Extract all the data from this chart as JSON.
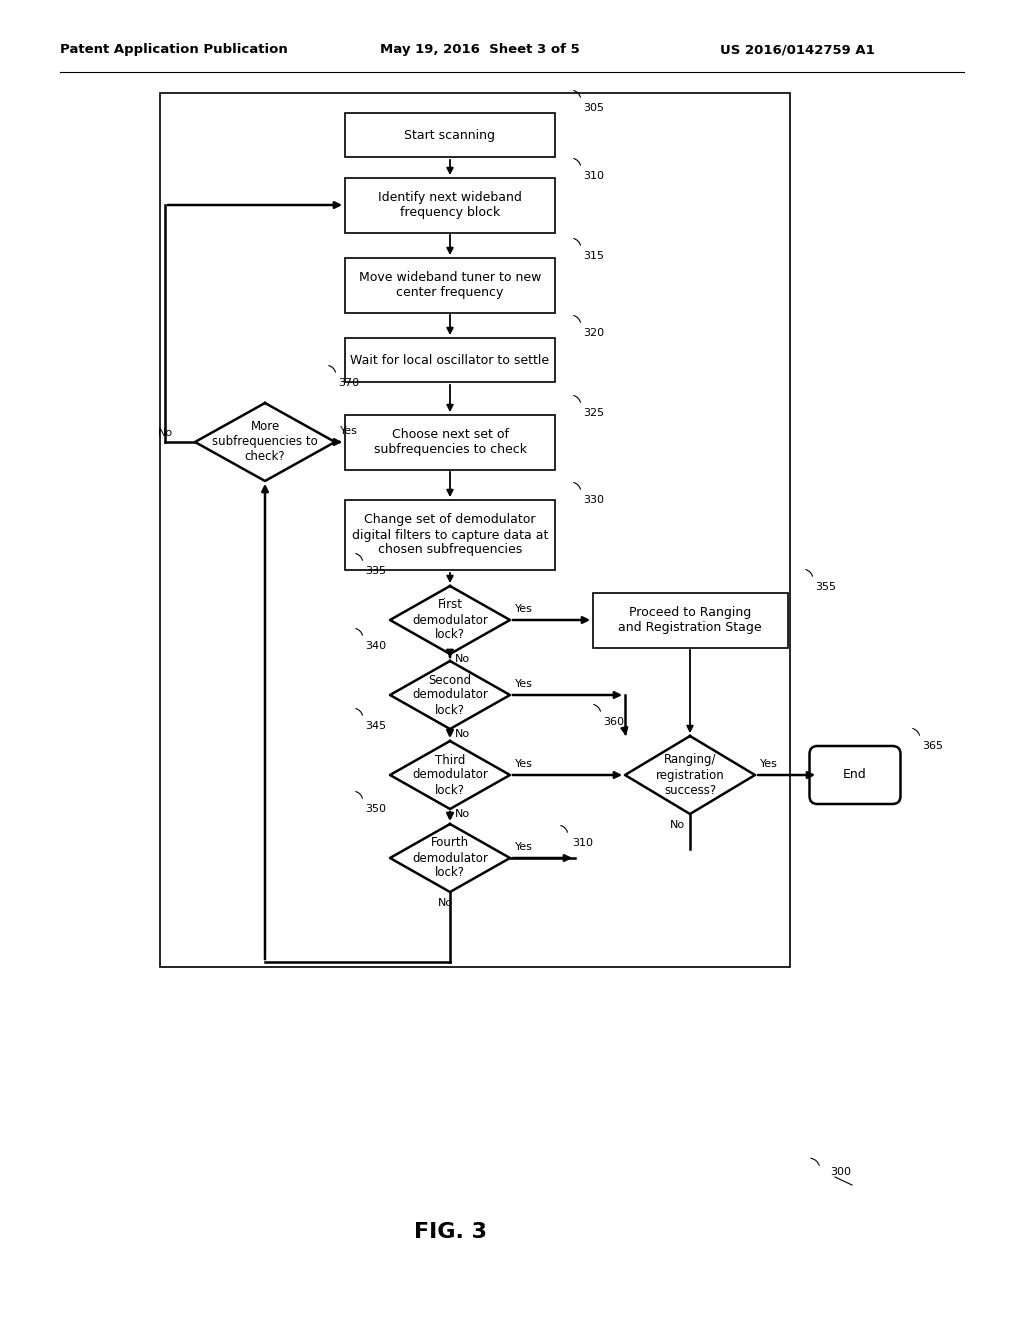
{
  "header_left": "Patent Application Publication",
  "header_mid": "May 19, 2016  Sheet 3 of 5",
  "header_right": "US 2016/0142759 A1",
  "figure_label": "FIG. 3",
  "figure_number": "300",
  "bg_color": "#ffffff"
}
